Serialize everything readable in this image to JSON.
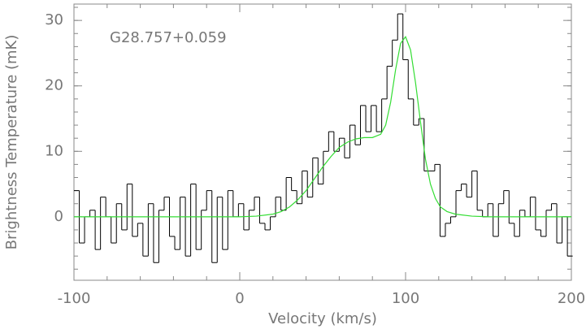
{
  "chart_data": {
    "type": "step",
    "annotation": "G28.757+0.059",
    "x_label": "Velocity (km/s)",
    "y_label": "Brightness Temperature (mK)",
    "xlim": [
      -100,
      200
    ],
    "ylim": [
      -9.7,
      32.5
    ],
    "xticks": [
      -100,
      0,
      100,
      200
    ],
    "yticks": [
      0,
      10,
      20,
      30
    ],
    "series": [
      {
        "color": "#000000",
        "x": [
          -98.4,
          -95.2,
          -92,
          -88.8,
          -85.6,
          -82.4,
          -79.2,
          -76,
          -72.8,
          -69.6,
          -66.4,
          -63.2,
          -60,
          -56.8,
          -53.6,
          -50.4,
          -47.2,
          -44,
          -40.8,
          -37.6,
          -34.4,
          -31.2,
          -28,
          -24.8,
          -21.6,
          -18.4,
          -15.2,
          -12,
          -8.8,
          -5.6,
          -2.4,
          0.8,
          4,
          7.2,
          10.4,
          13.6,
          16.8,
          20,
          23.2,
          26.4,
          29.6,
          32.8,
          36,
          39.2,
          42.4,
          45.6,
          48.8,
          52,
          55.2,
          58.4,
          61.6,
          64.8,
          68,
          71.2,
          74.4,
          77.6,
          80.8,
          84,
          87.2,
          90.4,
          93.6,
          96.8,
          100,
          103.2,
          106.4,
          109.6,
          112.8,
          116,
          119.2,
          122.4,
          125.6,
          128.8,
          132,
          135.2,
          138.4,
          141.6,
          144.8,
          148,
          151.2,
          154.4,
          157.6,
          160.8,
          164,
          167.2,
          170.4,
          173.6,
          176.8,
          180,
          183.2,
          186.4,
          189.6,
          192.8,
          196,
          199.2
        ],
        "values": [
          4,
          -4,
          0,
          1,
          -5,
          3,
          0,
          -4,
          2,
          -2,
          5,
          -3,
          -1,
          -6,
          2,
          -7,
          1,
          3,
          -3,
          -5,
          3,
          -6,
          5,
          -5,
          1,
          4,
          -7,
          3,
          -5,
          4,
          0,
          2,
          -2,
          1,
          3,
          -1,
          -2,
          0,
          3,
          1,
          6,
          4,
          2,
          7,
          3,
          9,
          5,
          10,
          13,
          10,
          12,
          9,
          14,
          11,
          17,
          13,
          17,
          13,
          18,
          23,
          27,
          31,
          24,
          18,
          14,
          15,
          7,
          7,
          8,
          -3,
          -1,
          0,
          4,
          5,
          3,
          7,
          1,
          0,
          2,
          -3,
          2,
          4,
          -1,
          -3,
          1,
          0,
          3,
          -2,
          -3,
          1,
          2,
          -4,
          0,
          -6
        ]
      },
      {
        "color": "#33dd33",
        "x": [
          -100,
          0,
          10,
          20,
          25,
          30,
          35,
          40,
          45,
          50,
          55,
          60,
          65,
          70,
          75,
          80,
          85,
          88,
          91,
          94,
          97,
          100,
          103,
          106,
          109,
          112,
          115,
          118,
          121,
          125,
          130,
          140,
          150,
          200
        ],
        "values": [
          0,
          0,
          0.1,
          0.4,
          0.8,
          1.5,
          2.6,
          4,
          5.8,
          7.6,
          9.2,
          10.6,
          11.4,
          11.9,
          12.1,
          12.1,
          12.6,
          14,
          17.5,
          22.5,
          26.5,
          27.5,
          25.5,
          20.5,
          14.5,
          8.8,
          5,
          2.8,
          1.5,
          0.8,
          0.4,
          0.1,
          0,
          0
        ]
      }
    ]
  }
}
